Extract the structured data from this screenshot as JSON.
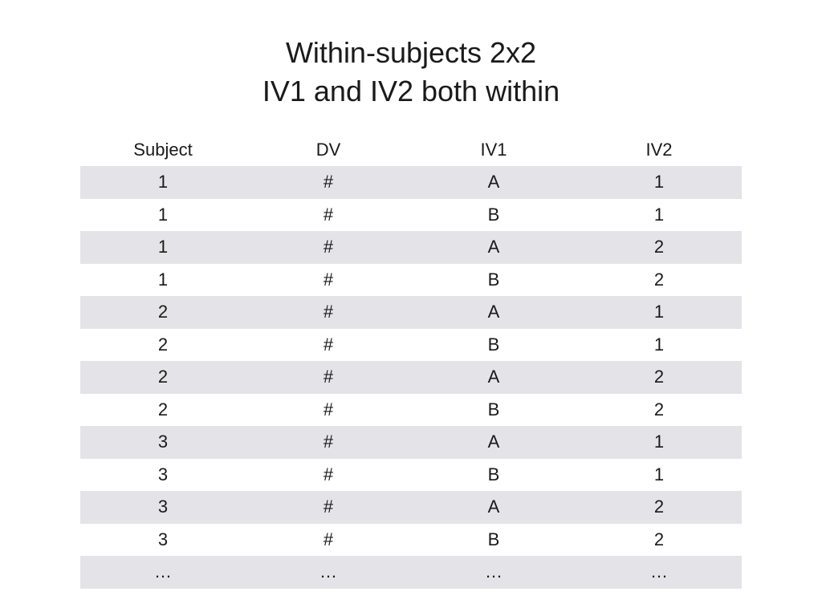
{
  "title": {
    "line1": "Within-subjects 2x2",
    "line2": "IV1 and IV2 both within"
  },
  "table": {
    "headers": [
      "Subject",
      "DV",
      "IV1",
      "IV2"
    ],
    "rows": [
      [
        "1",
        "#",
        "A",
        "1"
      ],
      [
        "1",
        "#",
        "B",
        "1"
      ],
      [
        "1",
        "#",
        "A",
        "2"
      ],
      [
        "1",
        "#",
        "B",
        "2"
      ],
      [
        "2",
        "#",
        "A",
        "1"
      ],
      [
        "2",
        "#",
        "B",
        "1"
      ],
      [
        "2",
        "#",
        "A",
        "2"
      ],
      [
        "2",
        "#",
        "B",
        "2"
      ],
      [
        "3",
        "#",
        "A",
        "1"
      ],
      [
        "3",
        "#",
        "B",
        "1"
      ],
      [
        "3",
        "#",
        "A",
        "2"
      ],
      [
        "3",
        "#",
        "B",
        "2"
      ],
      [
        "…",
        "…",
        "…",
        "…"
      ]
    ]
  },
  "colors": {
    "stripe": "#e4e4e8",
    "text": "#1a1a1a",
    "background": "#ffffff"
  }
}
